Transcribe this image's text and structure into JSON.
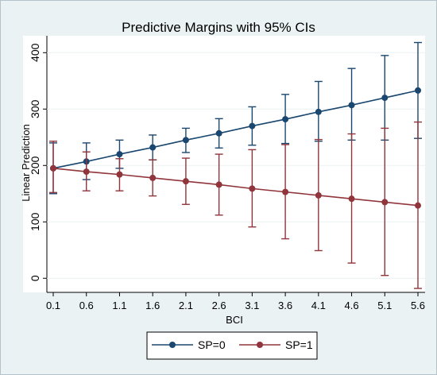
{
  "chart_data": {
    "type": "line",
    "title": "Predictive Margins with 95% CIs",
    "xlabel": "BCI",
    "ylabel": "Linear Prediction",
    "x": [
      0.1,
      0.6,
      1.1,
      1.6,
      2.1,
      2.6,
      3.1,
      3.6,
      4.1,
      4.6,
      5.1,
      5.6
    ],
    "x_tick_labels": [
      "0.1",
      "0.6",
      "1.1",
      "1.6",
      "2.1",
      "2.6",
      "3.1",
      "3.6",
      "4.1",
      "4.6",
      "5.1",
      "5.6"
    ],
    "y_ticks": [
      0,
      100,
      200,
      300,
      400
    ],
    "y_tick_labels": [
      "0",
      "100",
      "200",
      "300",
      "400"
    ],
    "xlim": [
      0.1,
      5.6
    ],
    "ylim": [
      -25,
      430
    ],
    "grid": "horizontal",
    "legend_position": "bottom",
    "series": [
      {
        "name": "SP=0",
        "color": "#1a476f",
        "values": [
          195,
          207,
          220,
          232,
          245,
          257,
          270,
          282,
          295,
          307,
          320,
          333
        ],
        "ci_low": [
          150,
          175,
          195,
          210,
          223,
          231,
          236,
          239,
          243,
          245,
          245,
          248
        ],
        "ci_high": [
          240,
          240,
          245,
          254,
          266,
          283,
          304,
          326,
          349,
          372,
          395,
          418
        ]
      },
      {
        "name": "SP=1",
        "color": "#90353b",
        "values": [
          195,
          189,
          184,
          178,
          172,
          166,
          159,
          153,
          147,
          141,
          135,
          129
        ],
        "ci_low": [
          152,
          155,
          155,
          146,
          131,
          112,
          91,
          70,
          49,
          27,
          5,
          -18
        ],
        "ci_high": [
          243,
          224,
          212,
          210,
          213,
          220,
          228,
          237,
          246,
          256,
          266,
          277
        ]
      }
    ]
  },
  "legend": {
    "items": [
      {
        "label": "SP=0",
        "color": "#1a476f"
      },
      {
        "label": "SP=1",
        "color": "#90353b"
      }
    ]
  }
}
